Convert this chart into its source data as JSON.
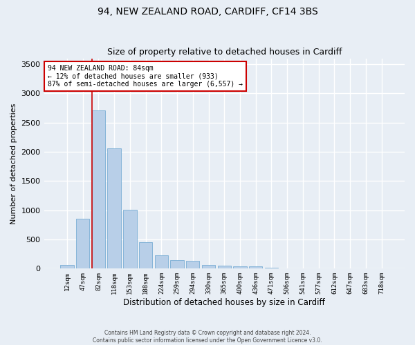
{
  "title1": "94, NEW ZEALAND ROAD, CARDIFF, CF14 3BS",
  "title2": "Size of property relative to detached houses in Cardiff",
  "xlabel": "Distribution of detached houses by size in Cardiff",
  "ylabel": "Number of detached properties",
  "footnote": "Contains HM Land Registry data © Crown copyright and database right 2024.\nContains public sector information licensed under the Open Government Licence v3.0.",
  "bin_labels": [
    "12sqm",
    "47sqm",
    "82sqm",
    "118sqm",
    "153sqm",
    "188sqm",
    "224sqm",
    "259sqm",
    "294sqm",
    "330sqm",
    "365sqm",
    "400sqm",
    "436sqm",
    "471sqm",
    "506sqm",
    "541sqm",
    "577sqm",
    "612sqm",
    "647sqm",
    "683sqm",
    "718sqm"
  ],
  "bar_heights": [
    60,
    850,
    2710,
    2055,
    1005,
    455,
    230,
    140,
    135,
    65,
    55,
    40,
    35,
    20,
    0,
    0,
    0,
    0,
    0,
    0,
    0
  ],
  "bar_color": "#b8cfe8",
  "bar_edge_color": "#7aaed4",
  "vline_index": 2,
  "vline_color": "#cc0000",
  "annotation_text": "94 NEW ZEALAND ROAD: 84sqm\n← 12% of detached houses are smaller (933)\n87% of semi-detached houses are larger (6,557) →",
  "annotation_box_color": "#ffffff",
  "annotation_box_edge": "#cc0000",
  "ylim": [
    0,
    3600
  ],
  "yticks": [
    0,
    500,
    1000,
    1500,
    2000,
    2500,
    3000,
    3500
  ],
  "bg_color": "#e8eef5",
  "plot_bg_color": "#e8eef5",
  "grid_color": "#ffffff",
  "title1_fontsize": 10,
  "title2_fontsize": 9
}
